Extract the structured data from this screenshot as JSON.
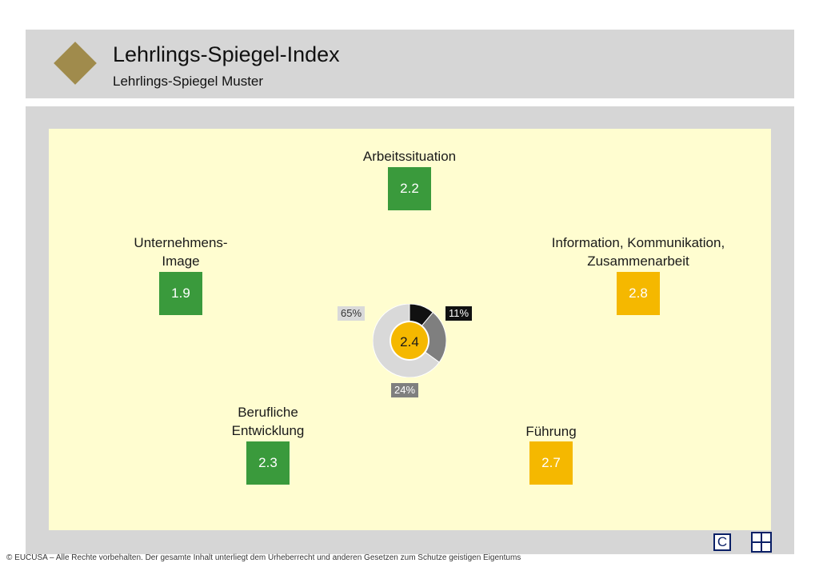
{
  "header": {
    "title": "Lehrlings-Spiegel-Index",
    "subtitle": "Lehrlings-Spiegel Muster",
    "logo_color": "#a08b4c"
  },
  "colors": {
    "good": "#3a9a3c",
    "medium": "#f5b800",
    "canvas": "#fffdd0",
    "frame": "#d6d6d6"
  },
  "dimensions": [
    {
      "label_lines": [
        "Arbeitssituation"
      ],
      "value": "2.2",
      "rating": "green"
    },
    {
      "label_lines": [
        "Unternehmens-",
        "Image"
      ],
      "value": "1.9",
      "rating": "green"
    },
    {
      "label_lines": [
        "Information, Kommunikation,",
        "Zusammenarbeit"
      ],
      "value": "2.8",
      "rating": "yellow"
    },
    {
      "label_lines": [
        "Berufliche",
        "Entwicklung"
      ],
      "value": "2.3",
      "rating": "green"
    },
    {
      "label_lines": [
        "Führung"
      ],
      "value": "2.7",
      "rating": "yellow"
    }
  ],
  "overall": {
    "value": "2.4",
    "distribution": [
      {
        "label": "11%",
        "percent": 11,
        "color": "#111111"
      },
      {
        "label": "24%",
        "percent": 24,
        "color": "#7f7f7f"
      },
      {
        "label": "65%",
        "percent": 65,
        "color": "#d9d9d9"
      }
    ]
  },
  "buttons": {
    "c_label": "C",
    "grid_icon": "grid-icon"
  },
  "footer": {
    "copyright": "© EUCUSA – Alle Rechte vorbehalten. Der gesamte Inhalt unterliegt dem Urheberrecht und anderen Gesetzen zum Schutze geistigen Eigentums"
  }
}
